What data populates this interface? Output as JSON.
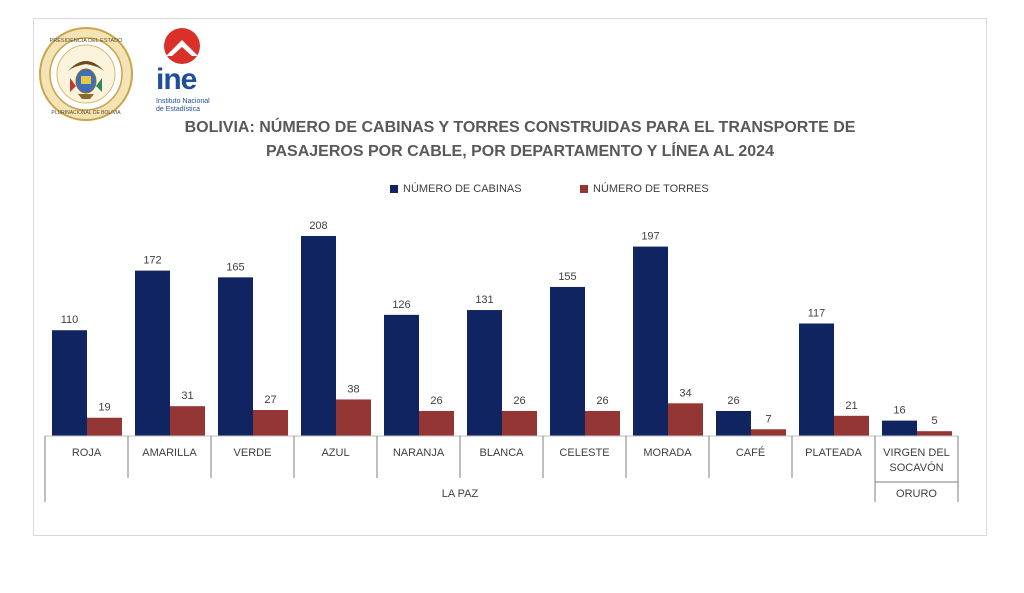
{
  "header": {
    "seal_text_top": "PRESIDENCIA DEL ESTADO",
    "seal_text_bottom": "PLURINACIONAL DE BOLIVIA",
    "ine_logo": "ine",
    "ine_subtitle": "Instituto Nacional de Estadística"
  },
  "chart_data": {
    "type": "bar",
    "title": "BOLIVIA: NÚMERO DE CABINAS Y TORRES CONSTRUIDAS PARA EL TRANSPORTE DE PASAJEROS POR CABLE, POR DEPARTAMENTO Y LÍNEA AL 2024",
    "categories": [
      "ROJA",
      "AMARILLA",
      "VERDE",
      "AZUL",
      "NARANJA",
      "BLANCA",
      "CELESTE",
      "MORADA",
      "CAFÉ",
      "PLATEADA",
      "VIRGEN DEL SOCAVÓN"
    ],
    "groups": [
      {
        "label": "LA PAZ",
        "count": 10
      },
      {
        "label": "ORURO",
        "count": 1
      }
    ],
    "series": [
      {
        "name": "NÚMERO DE CABINAS",
        "color": "#0f2461",
        "values": [
          110,
          172,
          165,
          208,
          126,
          131,
          155,
          197,
          26,
          117,
          16
        ]
      },
      {
        "name": "NÚMERO DE TORRES",
        "color": "#943634",
        "values": [
          19,
          31,
          27,
          38,
          26,
          26,
          26,
          34,
          7,
          21,
          5
        ]
      }
    ],
    "xlabel": "",
    "ylabel": "",
    "ylim": [
      0,
      208
    ],
    "grid": false,
    "legend_position": "top"
  }
}
